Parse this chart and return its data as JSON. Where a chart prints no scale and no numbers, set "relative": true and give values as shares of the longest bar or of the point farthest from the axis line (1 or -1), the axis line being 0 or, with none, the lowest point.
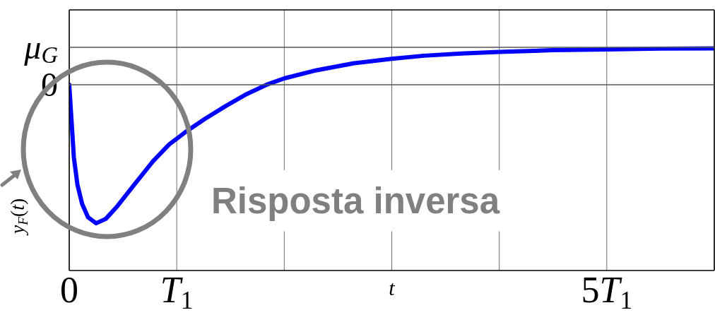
{
  "chart_data": {
    "type": "line",
    "relative": true,
    "xlabel": "t",
    "ylabel": "y$_{F}$(t)",
    "annotations": [
      "Risposta inversa"
    ],
    "x": [
      0,
      0.02,
      0.043,
      0.076,
      0.12,
      0.175,
      0.25,
      0.34,
      0.45,
      0.6,
      0.78,
      0.93,
      1.09,
      1.26,
      1.45,
      1.65,
      1.85,
      2.0,
      2.3,
      2.65,
      3.0,
      3.3,
      3.65,
      4.0,
      4.5,
      5.0,
      5.5,
      6.0
    ],
    "series": [
      {
        "color": "#0000ff",
        "values": [
          0,
          -0.242,
          -0.524,
          -0.72,
          -0.86,
          -0.957,
          -1,
          -0.968,
          -0.874,
          -0.726,
          -0.551,
          -0.43,
          -0.336,
          -0.247,
          -0.156,
          -0.067,
          0.005,
          0.046,
          0.105,
          0.156,
          0.188,
          0.21,
          0.226,
          0.237,
          0.25,
          0.255,
          0.261,
          0.263
        ]
      }
    ],
    "ref_lines": [
      {
        "axis": "y",
        "value": 0,
        "label": "0"
      },
      {
        "axis": "y",
        "value": 0.27,
        "label": "μ$_{G}$"
      }
    ],
    "xlim": [
      0,
      6
    ],
    "xticks": [
      0,
      {
        "value": 1,
        "label": "T$_{1}$"
      },
      {
        "value": 2,
        "label": null
      },
      {
        "value": 3,
        "label": null
      },
      {
        "value": 4,
        "label": null
      },
      {
        "value": 5,
        "label": "5T$_{1}$"
      },
      {
        "value": 6,
        "label": null
      }
    ],
    "grid": "x"
  }
}
